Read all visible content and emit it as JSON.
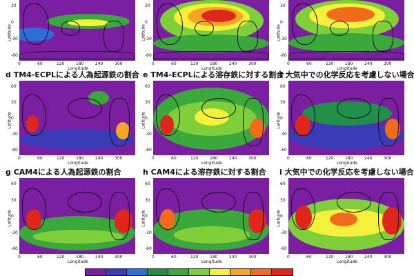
{
  "chart_data": [
    {
      "type": "heatmap",
      "panel": "a",
      "title": "",
      "xlabel": "Longitude",
      "ylabel": "Latitude",
      "xticks": [
        "0",
        "60",
        "120",
        "180",
        "240",
        "300"
      ],
      "yticks": [
        "30",
        "0",
        "-30",
        "-60"
      ]
    },
    {
      "type": "heatmap",
      "panel": "b",
      "title": "",
      "xlabel": "Longitude",
      "ylabel": "Latitude",
      "xticks": [
        "0",
        "60",
        "120",
        "180",
        "240",
        "300"
      ],
      "yticks": [
        "30",
        "0",
        "-30",
        "-60"
      ]
    },
    {
      "type": "heatmap",
      "panel": "c",
      "title": "",
      "xlabel": "Longitude",
      "ylabel": "Latitude",
      "xticks": [
        "0",
        "60",
        "120",
        "180",
        "240",
        "300"
      ],
      "yticks": [
        "30",
        "0",
        "-30",
        "-60"
      ]
    },
    {
      "type": "heatmap",
      "panel": "d",
      "title": "d TM4-ECPLによる人為起源鉄の割合",
      "xlabel": "Longitude",
      "ylabel": "Latitude",
      "xticks": [
        "0",
        "60",
        "120",
        "180",
        "240",
        "300"
      ],
      "yticks": [
        "60",
        "30",
        "0",
        "-30",
        "-60"
      ]
    },
    {
      "type": "heatmap",
      "panel": "e",
      "title": "e TM4-ECPLによる溶存鉄に対する割合",
      "xlabel": "Longitude",
      "ylabel": "Latitude",
      "xticks": [
        "0",
        "60",
        "120",
        "180",
        "240",
        "300"
      ],
      "yticks": [
        "60",
        "30",
        "0",
        "-30",
        "-60"
      ]
    },
    {
      "type": "heatmap",
      "panel": "f",
      "title": "f 大気中での化学反応を考慮しない場合",
      "xlabel": "Longitude",
      "ylabel": "Latitude",
      "xticks": [
        "0",
        "60",
        "120",
        "180",
        "240",
        "300"
      ],
      "yticks": [
        "60",
        "30",
        "0",
        "-30",
        "-60"
      ]
    },
    {
      "type": "heatmap",
      "panel": "g",
      "title": "g CAM4による人為起源鉄の割合",
      "xlabel": "Longitude",
      "ylabel": "Latitude",
      "xticks": [
        "0",
        "60",
        "120",
        "180",
        "240",
        "300"
      ],
      "yticks": [
        "60",
        "30",
        "0",
        "-30",
        "-60"
      ]
    },
    {
      "type": "heatmap",
      "panel": "h",
      "title": "h CAM4による溶存鉄に対する割合",
      "xlabel": "Longitude",
      "ylabel": "Latitude",
      "xticks": [
        "0",
        "60",
        "120",
        "180",
        "240",
        "300"
      ],
      "yticks": [
        "60",
        "30",
        "0",
        "-30",
        "-60"
      ]
    },
    {
      "type": "heatmap",
      "panel": "i",
      "title": "i 大気中での化学反応を考慮しない場合",
      "xlabel": "Longitude",
      "ylabel": "Latitude",
      "xticks": [
        "0",
        "60",
        "120",
        "180",
        "240",
        "300"
      ],
      "yticks": [
        "60",
        "30",
        "0",
        "-30",
        "-60"
      ]
    }
  ],
  "colorbar": {
    "colors": [
      "#7a1fa2",
      "#3b3bb8",
      "#2b6fd6",
      "#1f8f4a",
      "#3aa83a",
      "#7fcf3a",
      "#f5f03a",
      "#f5a623",
      "#f06c1c",
      "#e0261b"
    ]
  }
}
